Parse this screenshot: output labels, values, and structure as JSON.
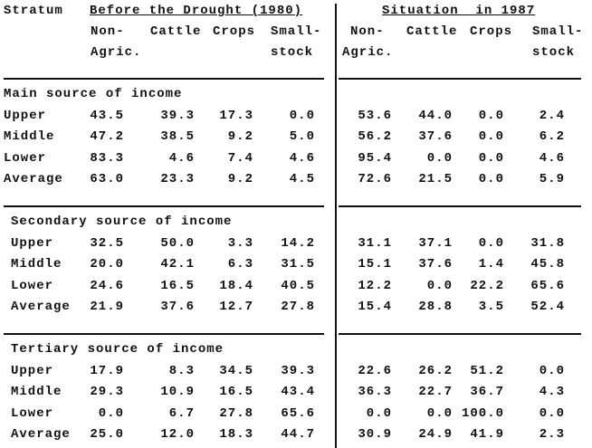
{
  "header": {
    "stratum_label": "Stratum",
    "before_title": "Before the Drought (1980)",
    "after_title": "Situation  in 1987",
    "columns": [
      {
        "line1": "Non-",
        "line2": "Agric."
      },
      {
        "line1": "Cattle",
        "line2": ""
      },
      {
        "line1": "Crops",
        "line2": ""
      },
      {
        "line1": "Small-",
        "line2": "stock"
      }
    ]
  },
  "sections": [
    {
      "title": "Main source of income",
      "rows": [
        {
          "stratum": "Upper",
          "before": [
            "43.5",
            "39.3",
            "17.3",
            "0.0"
          ],
          "after": [
            "53.6",
            "44.0",
            "0.0",
            "2.4"
          ]
        },
        {
          "stratum": "Middle",
          "before": [
            "47.2",
            "38.5",
            "9.2",
            "5.0"
          ],
          "after": [
            "56.2",
            "37.6",
            "0.0",
            "6.2"
          ]
        },
        {
          "stratum": "Lower",
          "before": [
            "83.3",
            "4.6",
            "7.4",
            "4.6"
          ],
          "after": [
            "95.4",
            "0.0",
            "0.0",
            "4.6"
          ]
        },
        {
          "stratum": "Average",
          "before": [
            "63.0",
            "23.3",
            "9.2",
            "4.5"
          ],
          "after": [
            "72.6",
            "21.5",
            "0.0",
            "5.9"
          ]
        }
      ]
    },
    {
      "title": "Secondary source of income",
      "rows": [
        {
          "stratum": "Upper",
          "before": [
            "32.5",
            "50.0",
            "3.3",
            "14.2"
          ],
          "after": [
            "31.1",
            "37.1",
            "0.0",
            "31.8"
          ]
        },
        {
          "stratum": "Middle",
          "before": [
            "20.0",
            "42.1",
            "6.3",
            "31.5"
          ],
          "after": [
            "15.1",
            "37.6",
            "1.4",
            "45.8"
          ]
        },
        {
          "stratum": "Lower",
          "before": [
            "24.6",
            "16.5",
            "18.4",
            "40.5"
          ],
          "after": [
            "12.2",
            "0.0",
            "22.2",
            "65.6"
          ]
        },
        {
          "stratum": "Average",
          "before": [
            "21.9",
            "37.6",
            "12.7",
            "27.8"
          ],
          "after": [
            "15.4",
            "28.8",
            "3.5",
            "52.4"
          ]
        }
      ]
    },
    {
      "title": "Tertiary source of income",
      "rows": [
        {
          "stratum": "Upper",
          "before": [
            "17.9",
            "8.3",
            "34.5",
            "39.3"
          ],
          "after": [
            "22.6",
            "26.2",
            "51.2",
            "0.0"
          ]
        },
        {
          "stratum": "Middle",
          "before": [
            "29.3",
            "10.9",
            "16.5",
            "43.4"
          ],
          "after": [
            "36.3",
            "22.7",
            "36.7",
            "4.3"
          ]
        },
        {
          "stratum": "Lower",
          "before": [
            "0.0",
            "6.7",
            "27.8",
            "65.6"
          ],
          "after": [
            "0.0",
            "0.0",
            "100.0",
            "0.0"
          ]
        },
        {
          "stratum": "Average",
          "before": [
            "25.0",
            "12.0",
            "18.3",
            "44.7"
          ],
          "after": [
            "30.9",
            "24.9",
            "41.9",
            "2.3"
          ]
        }
      ]
    }
  ]
}
